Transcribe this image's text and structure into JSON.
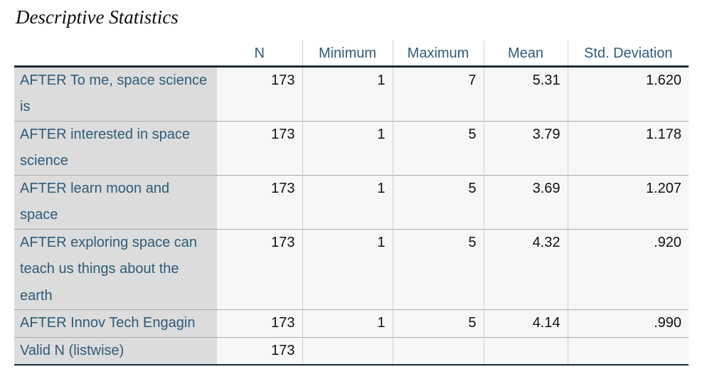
{
  "title": "Descriptive Statistics",
  "table": {
    "columns": [
      "N",
      "Minimum",
      "Maximum",
      "Mean",
      "Std. Deviation"
    ],
    "rows": [
      {
        "label": "AFTER To me, space science\nis",
        "n": "173",
        "min": "1",
        "max": "7",
        "mean": "5.31",
        "std": "1.620"
      },
      {
        "label": "AFTER interested in space\nscience",
        "n": "173",
        "min": "1",
        "max": "5",
        "mean": "3.79",
        "std": "1.178"
      },
      {
        "label": "AFTER learn moon and\nspace",
        "n": "173",
        "min": "1",
        "max": "5",
        "mean": "3.69",
        "std": "1.207"
      },
      {
        "label": "AFTER exploring space can\nteach us things about the\nearth",
        "n": "173",
        "min": "1",
        "max": "5",
        "mean": "4.32",
        "std": ".920"
      },
      {
        "label": "AFTER Innov Tech Engagin",
        "n": "173",
        "min": "1",
        "max": "5",
        "mean": "4.14",
        "std": ".990"
      },
      {
        "label": "Valid N (listwise)",
        "n": "173",
        "min": "",
        "max": "",
        "mean": "",
        "std": ""
      }
    ]
  },
  "colors": {
    "header_label_text": "#2F5B78",
    "number_text": "#111111",
    "label_column_bg": "#dcdcdc",
    "data_cell_bg": "#f7f7f7",
    "dark_rule": "#1b2b38",
    "row_divider": "#ababab",
    "column_divider": "#cfcfcf"
  }
}
